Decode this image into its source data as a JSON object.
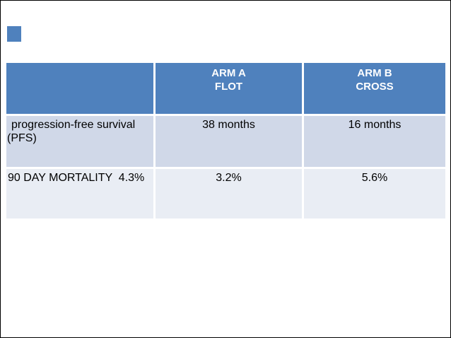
{
  "slide": {
    "background_color": "#ffffff",
    "frame_color": "#000000",
    "accent_square_color": "#4f81bd"
  },
  "table": {
    "header": {
      "empty_label": "",
      "arm_a_line1": "ARM A",
      "arm_a_line2": "FLOT",
      "arm_b_line1": "ARM B",
      "arm_b_line2": "CROSS"
    },
    "rows": [
      {
        "label_line1": "progression-free survival",
        "label_line2": "(PFS)",
        "arm_a": "38 months",
        "arm_b": "16 months"
      },
      {
        "label": "90 DAY MORTALITY  4.3%",
        "arm_a": "3.2%",
        "arm_b": "5.6%"
      }
    ],
    "colors": {
      "header_bg": "#4f81bd",
      "header_text": "#ffffff",
      "row1_bg": "#d0d8e8",
      "row2_bg": "#e9edf4",
      "body_text": "#000000"
    }
  },
  "chart_data": {
    "type": "table",
    "title": "",
    "columns": [
      "",
      "ARM A FLOT",
      "ARM B CROSS"
    ],
    "rows": [
      [
        "progression-free survival (PFS)",
        "38 months",
        "16 months"
      ],
      [
        "90 DAY MORTALITY  4.3%",
        "3.2%",
        "5.6%"
      ]
    ]
  }
}
